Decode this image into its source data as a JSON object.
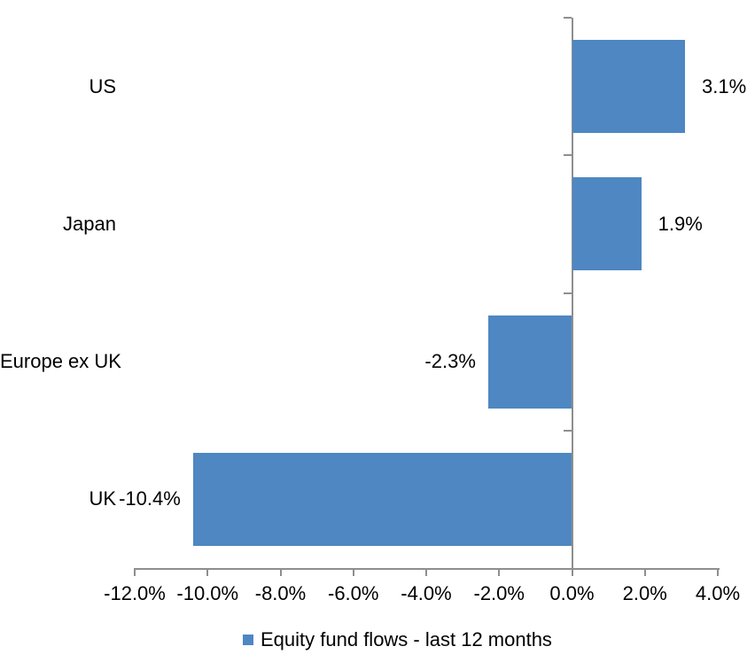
{
  "chart_data": {
    "type": "bar",
    "orientation": "horizontal",
    "title": "",
    "categories": [
      "US",
      "Japan",
      "Europe ex UK",
      "UK"
    ],
    "values": [
      3.1,
      1.9,
      -2.3,
      -10.4
    ],
    "data_labels": [
      "3.1%",
      "1.9%",
      "-2.3%",
      "-10.4%"
    ],
    "x_ticks": [
      -12,
      -10,
      -8,
      -6,
      -4,
      -2,
      0,
      2,
      4
    ],
    "x_tick_labels": [
      "-12.0%",
      "-10.0%",
      "-8.0%",
      "-6.0%",
      "-4.0%",
      "-2.0%",
      "0.0%",
      "2.0%",
      "4.0%"
    ],
    "xlim": [
      -12,
      4
    ],
    "grid": false,
    "legend": {
      "label": "Equity fund flows - last 12 months",
      "position": "bottom"
    },
    "colors": {
      "bar": "#4E87C1",
      "axis": "#8E8E8E",
      "text": "#000000",
      "background": "#FFFFFF"
    }
  }
}
